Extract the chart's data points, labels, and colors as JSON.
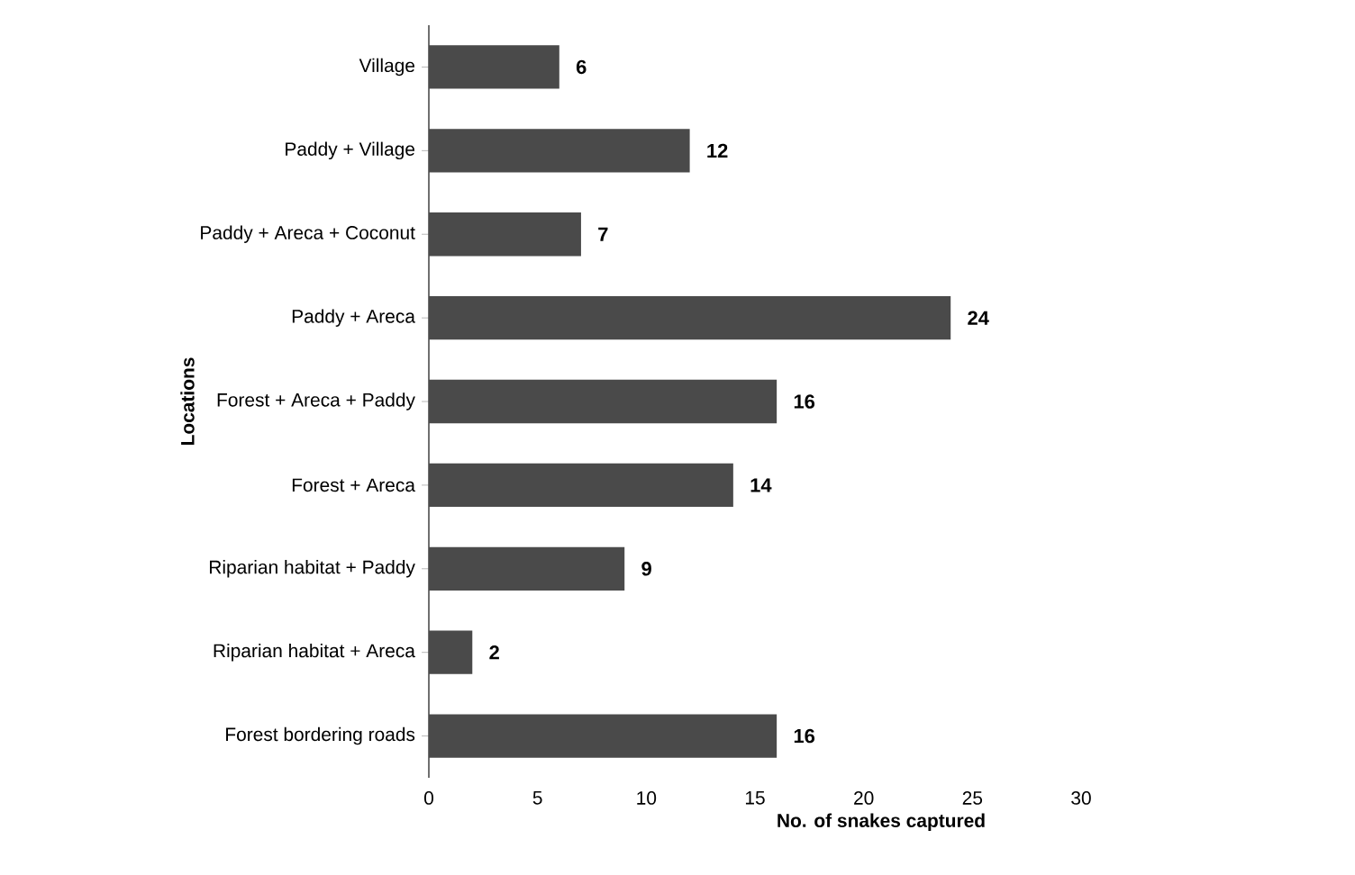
{
  "chart_data": {
    "type": "bar",
    "orientation": "horizontal",
    "xlabel": "No. of snakes captured",
    "ylabel": "Locations",
    "categories": [
      "Village",
      "Paddy + Village",
      "Paddy + Areca + Coconut",
      "Paddy + Areca",
      "Forest + Areca + Paddy",
      "Forest + Areca",
      "Riparian habitat + Paddy",
      "Riparian habitat + Areca",
      "Forest bordering roads"
    ],
    "values": [
      6,
      12,
      7,
      24,
      16,
      14,
      9,
      2,
      16
    ],
    "color": "#4a4a4a",
    "xlim": [
      0,
      30
    ],
    "xticks": [
      0,
      5,
      10,
      15,
      20,
      25,
      30
    ],
    "data_labels": true,
    "grid": false
  }
}
